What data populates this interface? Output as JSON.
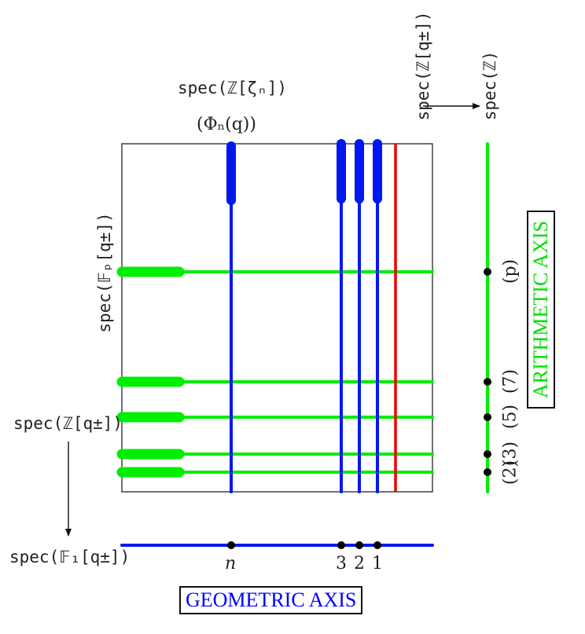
{
  "labels": {
    "spec_zeta": "spec(ℤ[ζₙ])",
    "phi_n": "(Φₙ(q))",
    "spec_zq_top": "spec(ℤ[q±])",
    "spec_z": "spec(ℤ)",
    "spec_fp": "spec(𝔽ₚ[q±])",
    "spec_zq_left": "spec(ℤ[q±])",
    "spec_f1": "spec(𝔽₁[q±])"
  },
  "geometric_axis": {
    "title": "GEOMETRIC AXIS",
    "point_labels": [
      "n",
      "3",
      "2",
      "1"
    ]
  },
  "arithmetic_axis": {
    "title": "ARITHMETIC AXIS",
    "point_labels": [
      "(p)",
      "(7)",
      "(5)",
      "(3)",
      "(2)"
    ]
  },
  "colors": {
    "geometric": "#0018f0",
    "arithmetic": "#00ee00",
    "special": "#ee0000",
    "frame": "#222222",
    "dot": "#000000",
    "geometric_title": "#0000ff",
    "arithmetic_title": "#00dd00"
  }
}
